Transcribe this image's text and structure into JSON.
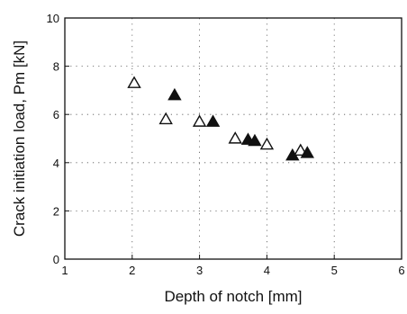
{
  "chart_data": {
    "type": "scatter",
    "title": "",
    "xlabel": "Depth of notch  [mm]",
    "ylabel": "Crack initiation load,   Pm [kN]",
    "xlim": [
      1,
      6
    ],
    "ylim": [
      0,
      10
    ],
    "x_ticks": [
      "1",
      "2",
      "3",
      "4",
      "5",
      "6"
    ],
    "y_ticks": [
      "0",
      "2",
      "4",
      "6",
      "8",
      "10"
    ],
    "grid": true,
    "series": [
      {
        "marker": "open-triangle",
        "color": "#111111",
        "points": [
          {
            "x": 2.03,
            "y": 7.3
          },
          {
            "x": 2.5,
            "y": 5.8
          },
          {
            "x": 3.0,
            "y": 5.7
          },
          {
            "x": 3.53,
            "y": 5.0
          },
          {
            "x": 4.0,
            "y": 4.75
          },
          {
            "x": 4.5,
            "y": 4.5
          }
        ]
      },
      {
        "marker": "filled-triangle",
        "color": "#111111",
        "points": [
          {
            "x": 2.63,
            "y": 6.8
          },
          {
            "x": 3.2,
            "y": 5.7
          },
          {
            "x": 3.72,
            "y": 4.95
          },
          {
            "x": 3.82,
            "y": 4.9
          },
          {
            "x": 4.38,
            "y": 4.3
          },
          {
            "x": 4.6,
            "y": 4.4
          }
        ]
      }
    ]
  }
}
